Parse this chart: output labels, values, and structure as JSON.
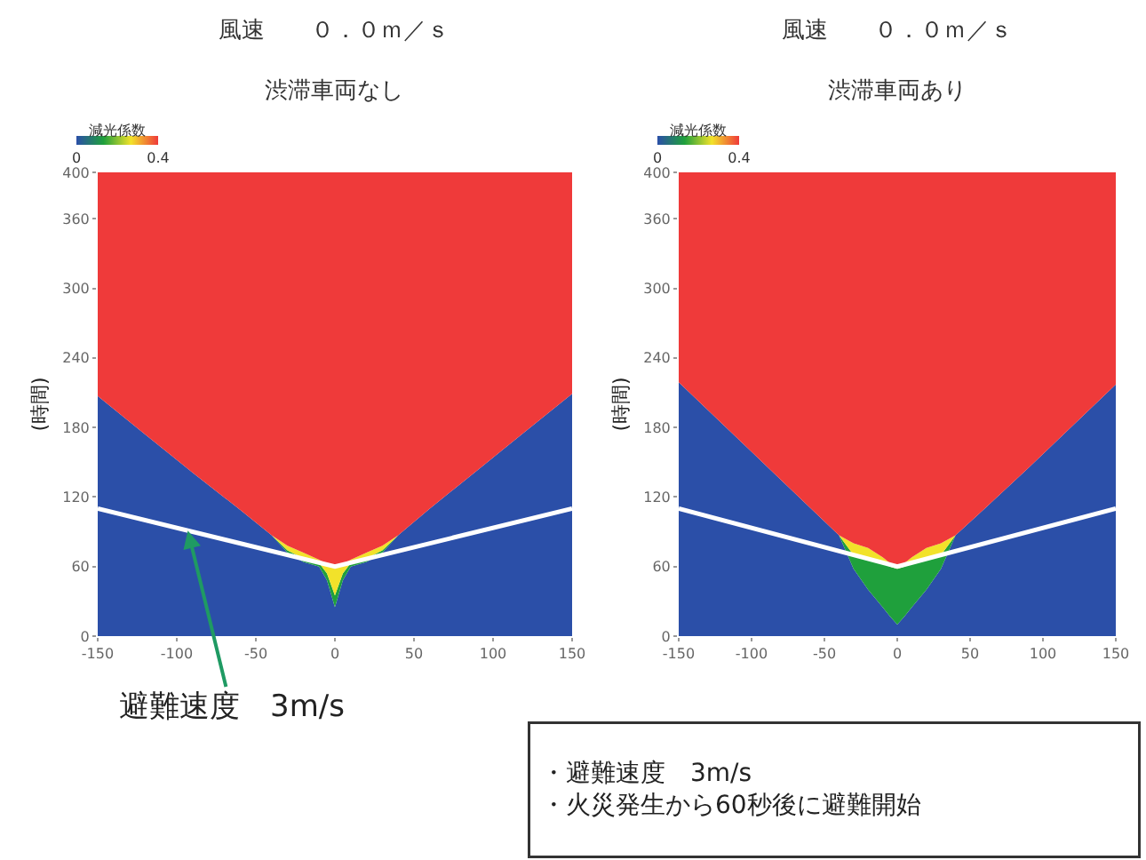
{
  "chart_data": [
    {
      "type": "area",
      "title": "風速　　０．０ｍ／ｓ",
      "subtitle": "渋滞車両なし",
      "ylabel": "(時間)",
      "clabel": "減光係数",
      "clim": [
        0,
        0.4
      ],
      "cticks": [
        0,
        0.4
      ],
      "stacked": true,
      "x": [
        -150,
        -120,
        -90,
        -60,
        -40,
        -30,
        -20,
        -10,
        -5,
        0,
        5,
        10,
        20,
        30,
        40,
        60,
        90,
        120,
        150
      ],
      "series": [
        {
          "color": "#2b4fa8",
          "values": [
            207,
            174,
            141,
            109,
            87,
            72,
            64,
            60,
            48,
            25,
            48,
            60,
            64,
            72,
            87,
            110,
            143,
            176,
            209
          ]
        },
        {
          "color": "#1fa03c",
          "values": [
            0,
            0,
            0,
            0,
            0,
            2,
            3,
            3,
            6,
            10,
            6,
            3,
            3,
            2,
            0,
            0,
            0,
            0,
            0
          ]
        },
        {
          "color": "#f2e22a",
          "values": [
            0,
            0,
            0,
            0,
            0,
            4,
            5,
            3,
            8,
            23,
            8,
            3,
            5,
            4,
            0,
            0,
            0,
            0,
            0
          ]
        },
        {
          "color": "#ef3a3a",
          "values": [
            193,
            226,
            259,
            291,
            313,
            322,
            328,
            334,
            338,
            342,
            338,
            334,
            328,
            322,
            313,
            290,
            257,
            224,
            191
          ]
        },
        {
          "type": "line",
          "color": "#ffffff",
          "x": [
            -150,
            0,
            150
          ],
          "values": [
            110,
            60,
            110
          ]
        }
      ],
      "xlim": [
        -150,
        150
      ],
      "ylim": [
        0,
        400
      ],
      "xticks": [
        -150,
        -100,
        -50,
        0,
        50,
        100,
        150
      ],
      "yticks": [
        0,
        60,
        120,
        180,
        240,
        300,
        360,
        400
      ],
      "annotations": [
        {
          "text": "避難速度　3m/s",
          "x": -93,
          "y": 91
        }
      ]
    },
    {
      "type": "area",
      "title": "風速　　０．０ｍ／ｓ",
      "subtitle": "渋滞車両あり",
      "ylabel": "(時間)",
      "clabel": "減光係数",
      "clim": [
        0,
        0.4
      ],
      "cticks": [
        0,
        0.4
      ],
      "stacked": true,
      "x": [
        -150,
        -120,
        -90,
        -60,
        -40,
        -30,
        -20,
        -10,
        -5,
        0,
        5,
        10,
        20,
        30,
        40,
        60,
        90,
        120,
        150
      ],
      "series": [
        {
          "color": "#2b4fa8",
          "values": [
            219,
            183,
            147,
            111,
            87,
            58,
            40,
            25,
            17,
            10,
            17,
            25,
            40,
            58,
            87,
            110,
            145,
            181,
            217
          ]
        },
        {
          "color": "#1fa03c",
          "values": [
            0,
            0,
            0,
            0,
            0,
            12,
            28,
            38,
            43,
            48,
            43,
            38,
            28,
            12,
            0,
            0,
            0,
            0,
            0
          ]
        },
        {
          "color": "#f2e22a",
          "values": [
            0,
            0,
            0,
            0,
            0,
            10,
            8,
            5,
            3,
            2,
            3,
            5,
            8,
            10,
            0,
            0,
            0,
            0,
            0
          ]
        },
        {
          "color": "#ef3a3a",
          "values": [
            181,
            217,
            253,
            289,
            313,
            320,
            324,
            332,
            337,
            340,
            337,
            332,
            324,
            320,
            313,
            290,
            255,
            219,
            183
          ]
        },
        {
          "type": "line",
          "color": "#ffffff",
          "x": [
            -150,
            0,
            150
          ],
          "values": [
            110,
            60,
            110
          ]
        }
      ],
      "xlim": [
        -150,
        150
      ],
      "ylim": [
        0,
        400
      ],
      "xticks": [
        -150,
        -100,
        -50,
        0,
        50,
        100,
        150
      ],
      "yticks": [
        0,
        60,
        120,
        180,
        240,
        300,
        360,
        400
      ],
      "annotations": [
        "・避難速度　3m/s\n・火災発生から60秒後に避難開始"
      ]
    }
  ]
}
